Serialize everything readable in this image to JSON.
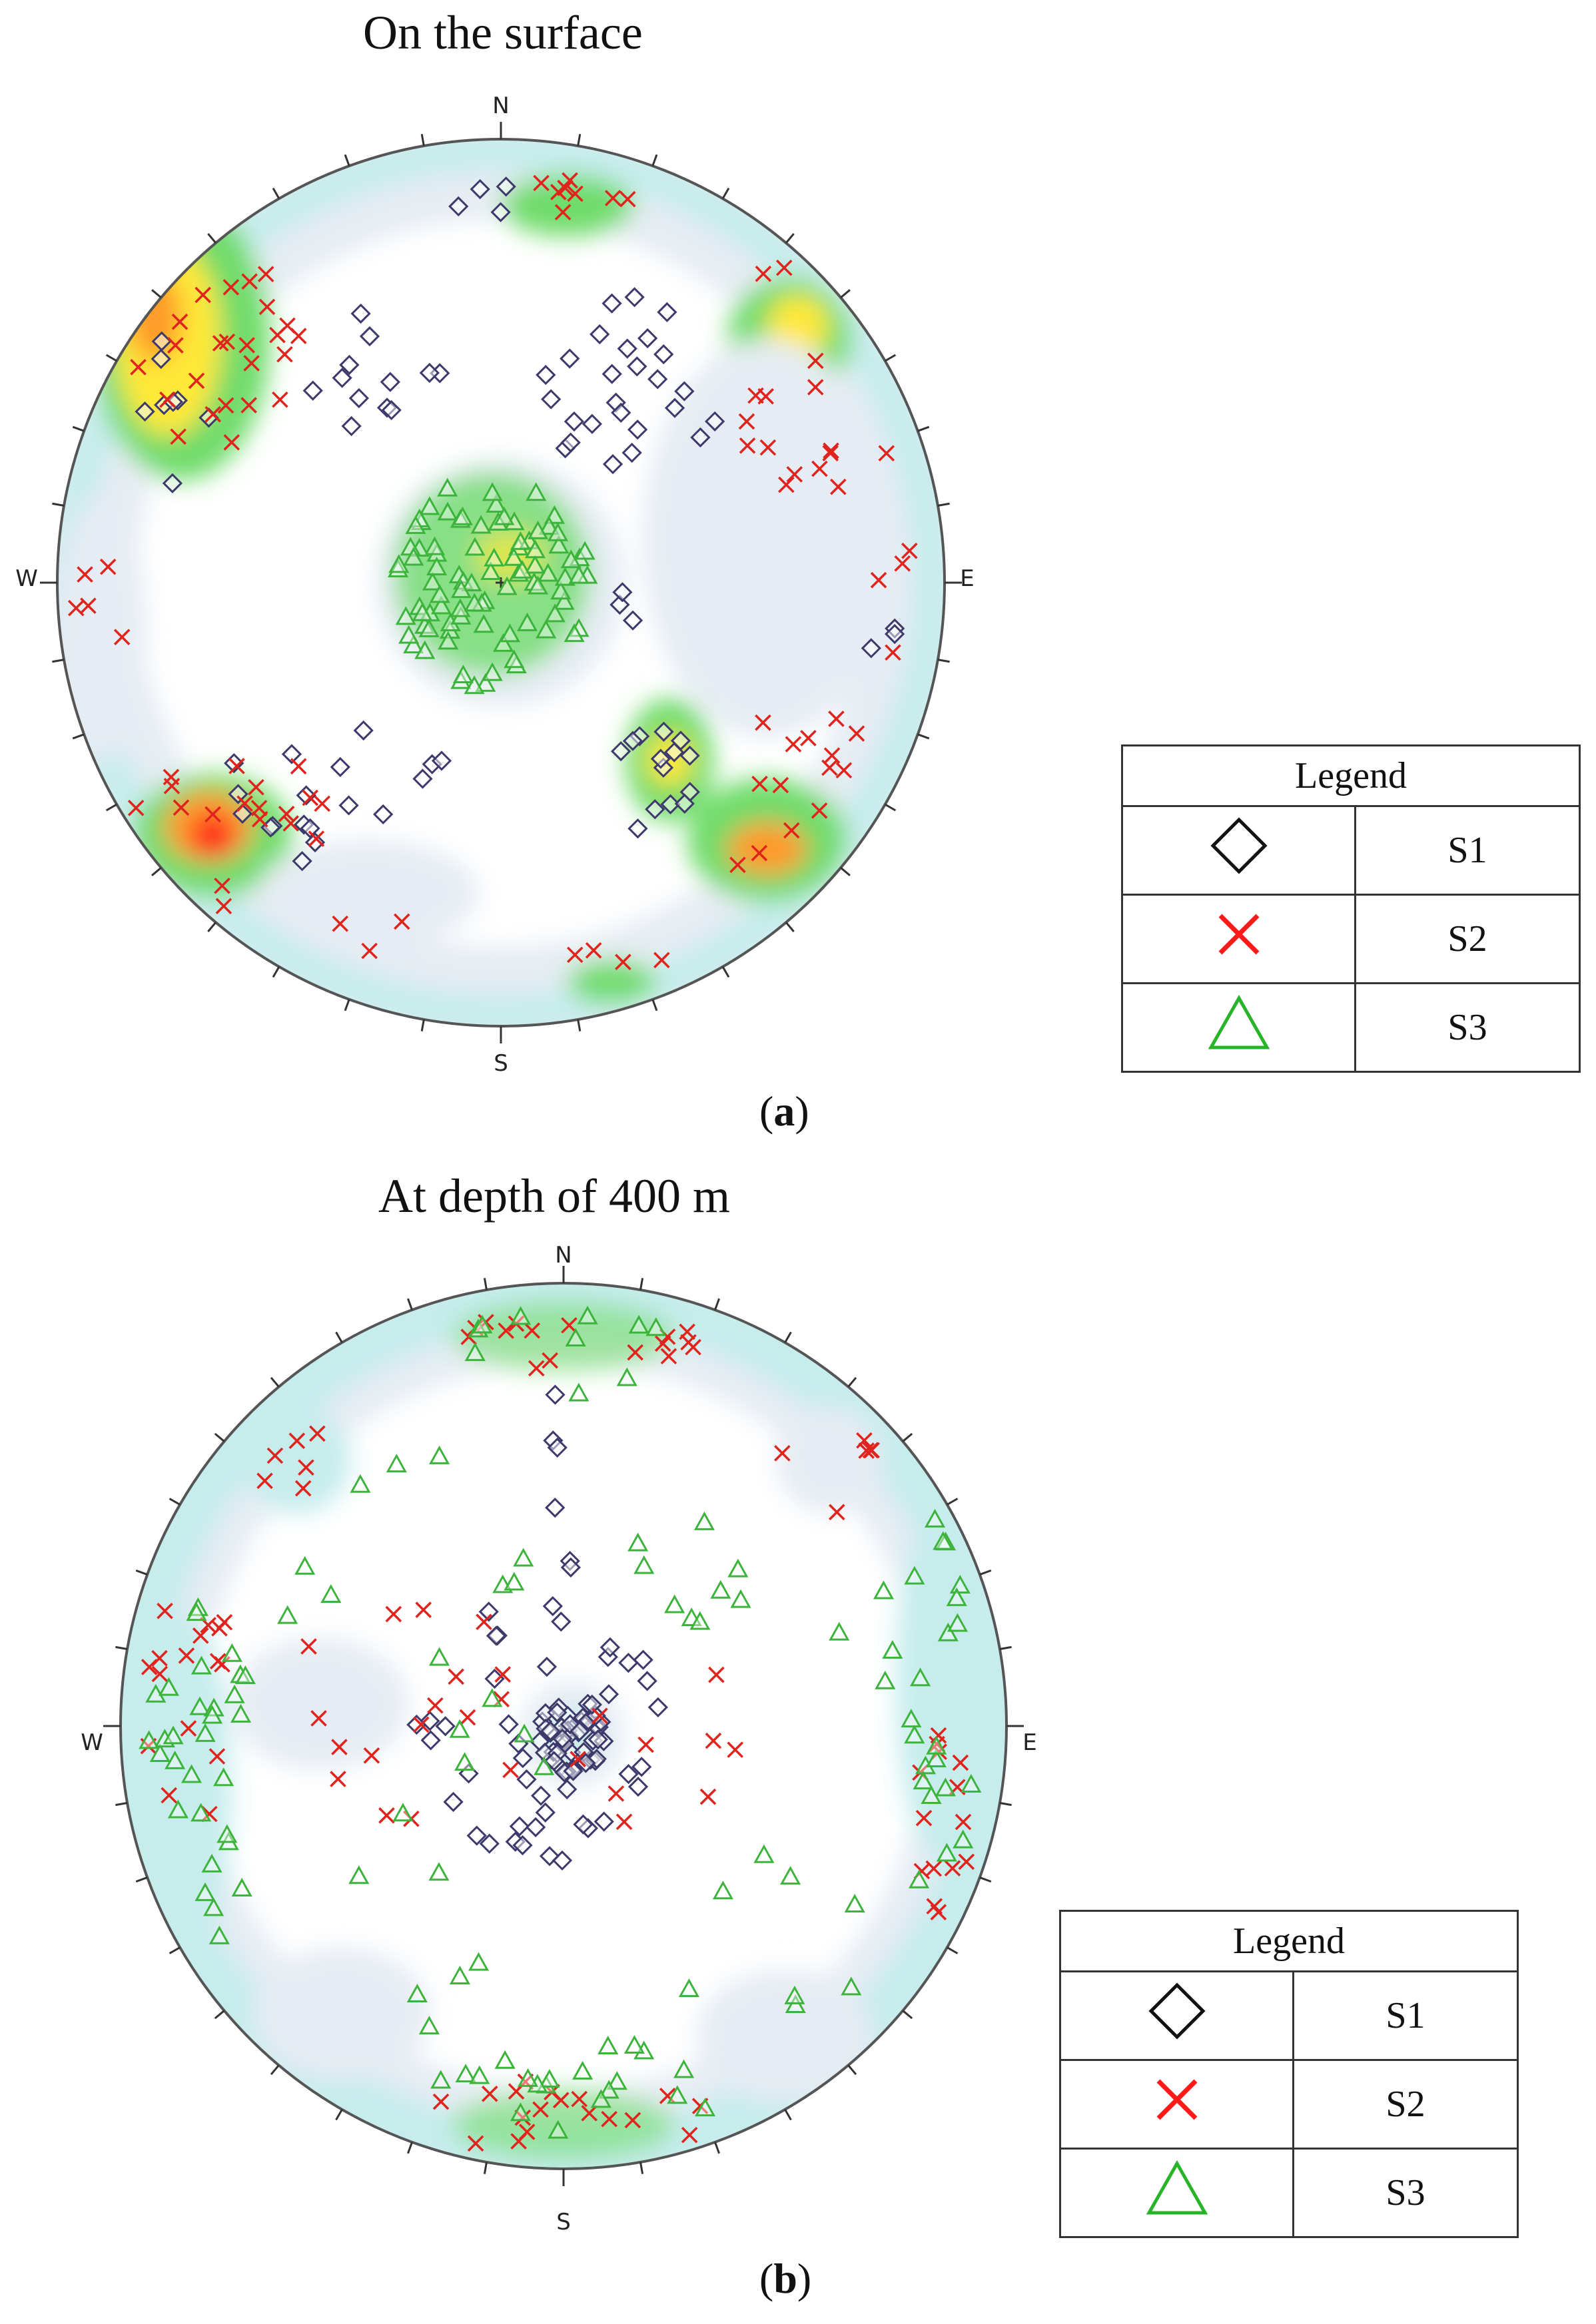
{
  "panels": [
    {
      "id": "a",
      "title": "On the surface",
      "caption_letter": "a",
      "compass": {
        "N": "N",
        "E": "E",
        "S": "S",
        "W": "W"
      },
      "legend": {
        "header": "Legend",
        "entries": [
          {
            "symbol": "diamond",
            "label": "S1"
          },
          {
            "symbol": "cross",
            "label": "S2"
          },
          {
            "symbol": "triangle",
            "label": "S3"
          }
        ]
      }
    },
    {
      "id": "b",
      "title": "At depth of 400 m",
      "caption_letter": "b",
      "compass": {
        "N": "N",
        "E": "E",
        "S": "S",
        "W": "W"
      },
      "legend": {
        "header": "Legend",
        "entries": [
          {
            "symbol": "diamond",
            "label": "S1"
          },
          {
            "symbol": "cross",
            "label": "S2"
          },
          {
            "symbol": "triangle",
            "label": "S3"
          }
        ]
      }
    }
  ],
  "colors": {
    "S1": "#3d3a6b",
    "S2": "#e0231c",
    "S3": "#3cb43c",
    "contour_low": "#e6ecf3",
    "contour_mid": "#c6ecec",
    "contour_green": "#6fdc6a",
    "contour_yellow": "#ffe838",
    "contour_orange": "#ff9a2a",
    "contour_red": "#ff1a1a"
  }
}
